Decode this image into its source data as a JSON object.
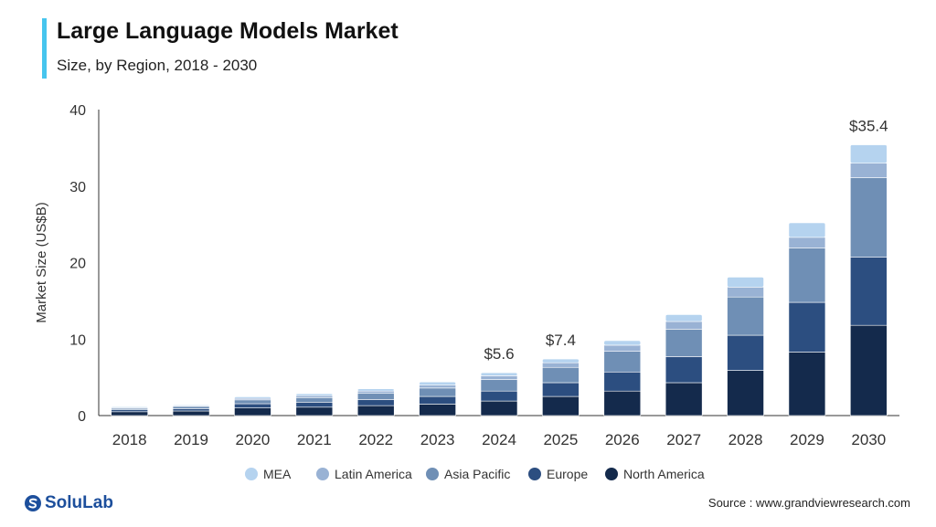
{
  "header": {
    "title": "Large Language Models Market",
    "subtitle": "Size, by Region, 2018 - 2030"
  },
  "footer": {
    "brand": "SoluLab",
    "source": "Source :  www.grandviewresearch.com"
  },
  "chart_data": {
    "type": "bar",
    "stacked": true,
    "ylabel": "Market Size (US$B)",
    "xlabel": "",
    "ylim": [
      0,
      40
    ],
    "yticks": [
      0,
      10,
      20,
      30,
      40
    ],
    "grid": false,
    "legend_position": "bottom",
    "categories": [
      "2018",
      "2019",
      "2020",
      "2021",
      "2022",
      "2023",
      "2024",
      "2025",
      "2026",
      "2027",
      "2028",
      "2029",
      "2030"
    ],
    "series": [
      {
        "name": "North America",
        "color": "#142a4c",
        "values": [
          0.5,
          0.6,
          1.0,
          1.1,
          1.3,
          1.5,
          1.9,
          2.5,
          3.2,
          4.3,
          5.9,
          8.3,
          11.8
        ]
      },
      {
        "name": "Europe",
        "color": "#2c4e80",
        "values": [
          0.25,
          0.3,
          0.55,
          0.65,
          0.8,
          1.0,
          1.3,
          1.8,
          2.5,
          3.4,
          4.6,
          6.5,
          8.9
        ]
      },
      {
        "name": "Asia Pacific",
        "color": "#6f8fb5",
        "values": [
          0.2,
          0.3,
          0.5,
          0.6,
          0.8,
          1.1,
          1.5,
          2.0,
          2.7,
          3.6,
          5.0,
          7.1,
          10.4
        ]
      },
      {
        "name": "Latin America",
        "color": "#99b2d4",
        "values": [
          0.1,
          0.1,
          0.2,
          0.25,
          0.3,
          0.4,
          0.5,
          0.6,
          0.8,
          1.0,
          1.3,
          1.4,
          1.9
        ]
      },
      {
        "name": "MEA",
        "color": "#b5d3ef",
        "values": [
          0.1,
          0.1,
          0.2,
          0.25,
          0.3,
          0.4,
          0.4,
          0.5,
          0.6,
          0.9,
          1.3,
          1.9,
          2.4
        ]
      }
    ],
    "annotations": [
      {
        "category": "2024",
        "text": "$5.6"
      },
      {
        "category": "2025",
        "text": "$7.4"
      },
      {
        "category": "2030",
        "text": "$35.4"
      }
    ]
  }
}
